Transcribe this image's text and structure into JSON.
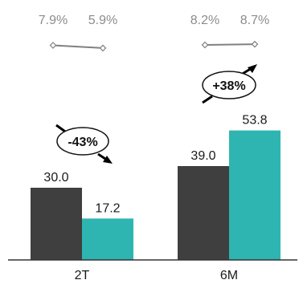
{
  "chart_data": {
    "type": "bar",
    "categories": [
      "2T",
      "6M"
    ],
    "series": [
      {
        "values": [
          30.0,
          39.0
        ]
      },
      {
        "values": [
          17.2,
          53.8
        ]
      }
    ],
    "value_labels": [
      [
        "30.0",
        "39.0"
      ],
      [
        "17.2",
        "53.8"
      ]
    ],
    "ylim": [
      0,
      60
    ],
    "grid": false,
    "margin_line": {
      "values": [
        [
          7.9,
          5.9
        ],
        [
          8.2,
          8.7
        ]
      ],
      "labels": [
        [
          "7.9%",
          "5.9%"
        ],
        [
          "8.2%",
          "8.7%"
        ]
      ]
    },
    "changes": [
      {
        "category": "2T",
        "label": "-43%",
        "direction": "down"
      },
      {
        "category": "6M",
        "label": "+38%",
        "direction": "up"
      }
    ]
  },
  "colors": {
    "series_1": "#3f3f3f",
    "series_2": "#2eb5b1",
    "margin_line": "#808080",
    "axis": "#333333"
  }
}
